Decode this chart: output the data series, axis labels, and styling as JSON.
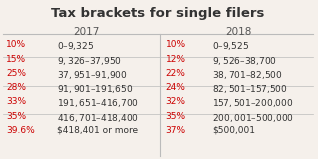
{
  "title": "Tax brackets for single filers",
  "col2017_header": "2017",
  "col2018_header": "2018",
  "rows_2017": [
    [
      "10%",
      "$0–$9,325"
    ],
    [
      "15%",
      "$9,326–$37,950"
    ],
    [
      "25%",
      "$37,951–$91,900"
    ],
    [
      "28%",
      "$91,901–$191,650"
    ],
    [
      "33%",
      "$191,651–$416,700"
    ],
    [
      "35%",
      "$416,701–$418,400"
    ],
    [
      "39.6%",
      "$418,401 or more"
    ]
  ],
  "rows_2018": [
    [
      "10%",
      "$0–$9,525"
    ],
    [
      "12%",
      "$9,526–$38,700"
    ],
    [
      "22%",
      "$38,701–$82,500"
    ],
    [
      "24%",
      "$82,501–$157,500"
    ],
    [
      "32%",
      "$157,501–$200,000"
    ],
    [
      "35%",
      "$200,001–$500,000"
    ],
    [
      "37%",
      "$500,001"
    ]
  ],
  "red_color": "#cc0000",
  "black_color": "#333333",
  "bg_color": "#f5f0eb",
  "header_color": "#555555",
  "divider_color": "#bbbbbb",
  "title_fontsize": 9.5,
  "header_fontsize": 7.5,
  "cell_fontsize": 6.5
}
